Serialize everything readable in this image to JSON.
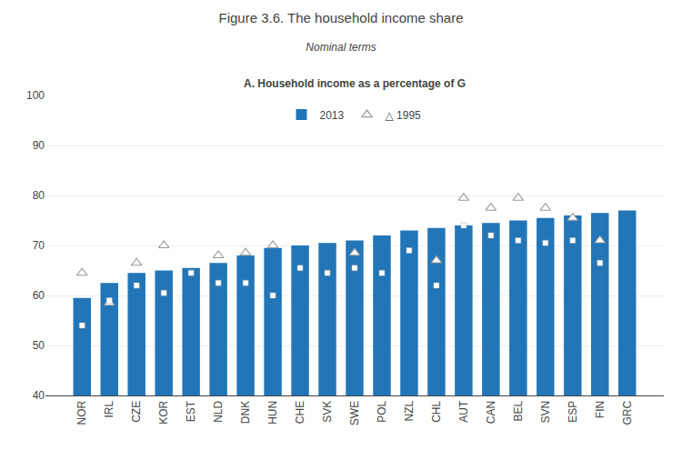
{
  "chart_data": {
    "type": "bar",
    "title": "Figure 3.6. The household income share",
    "subtitle": "Nominal terms",
    "annotations": [
      "A. Household income as a percentage of G"
    ],
    "categories": [
      "NOR",
      "IRL",
      "CZE",
      "KOR",
      "EST",
      "NLD",
      "DNK",
      "HUN",
      "CHE",
      "SVK",
      "SWE",
      "POL",
      "NZL",
      "CHL",
      "AUT",
      "CAN",
      "BEL",
      "SVN",
      "ESP",
      "FIN",
      "GRC"
    ],
    "series": [
      {
        "name": "2013",
        "type": "bar",
        "color": "#2276b8",
        "values": [
          59.5,
          62.5,
          64.5,
          65.0,
          65.5,
          66.5,
          68.0,
          69.5,
          70.0,
          70.5,
          71.0,
          72.0,
          73.0,
          73.5,
          74.0,
          74.5,
          75.0,
          75.5,
          76.0,
          76.5,
          77.0
        ]
      },
      {
        "name": "△ 1995",
        "type": "scatter",
        "marker": "triangle-up",
        "color": "white",
        "values": [
          64.5,
          58.5,
          66.5,
          70.0,
          null,
          68.0,
          68.5,
          70.0,
          null,
          null,
          68.5,
          null,
          null,
          67.0,
          79.5,
          77.5,
          79.5,
          77.5,
          75.5,
          71.0,
          null
        ]
      },
      {
        "type": "scatter",
        "marker": "square",
        "color": "#ffffff",
        "values": [
          54.0,
          59.0,
          62.0,
          60.5,
          64.5,
          62.5,
          62.5,
          60.0,
          65.5,
          64.5,
          65.5,
          64.5,
          69.0,
          62.0,
          74.0,
          72.0,
          71.0,
          70.5,
          71.0,
          66.5,
          null
        ]
      }
    ],
    "ylim": [
      40,
      100
    ],
    "yticks": [
      40,
      50,
      60,
      70,
      80,
      90,
      100
    ],
    "grid": true,
    "legend": "top"
  }
}
